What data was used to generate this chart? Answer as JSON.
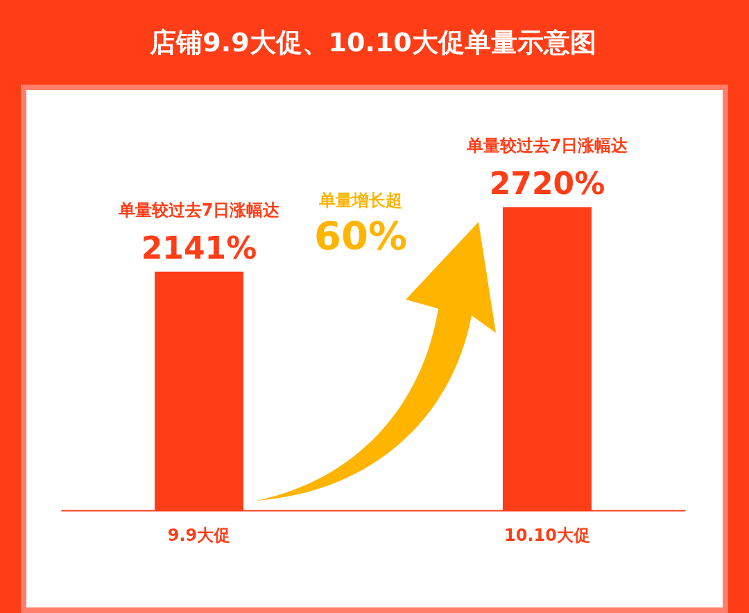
{
  "chart_data": {
    "type": "bar",
    "title": "店铺9.9大促、10.10大促单量示意图",
    "categories": [
      "9.9大促",
      "10.10大促"
    ],
    "values": [
      2141,
      2720
    ],
    "value_labels": [
      "2141%",
      "2720%"
    ],
    "color": "#ff3d17",
    "tick_labels": "x",
    "grid": false,
    "annotations": [
      "单量较过去7日涨幅达",
      "单量较过去7日涨幅达",
      "单量增长超",
      "60%"
    ]
  }
}
